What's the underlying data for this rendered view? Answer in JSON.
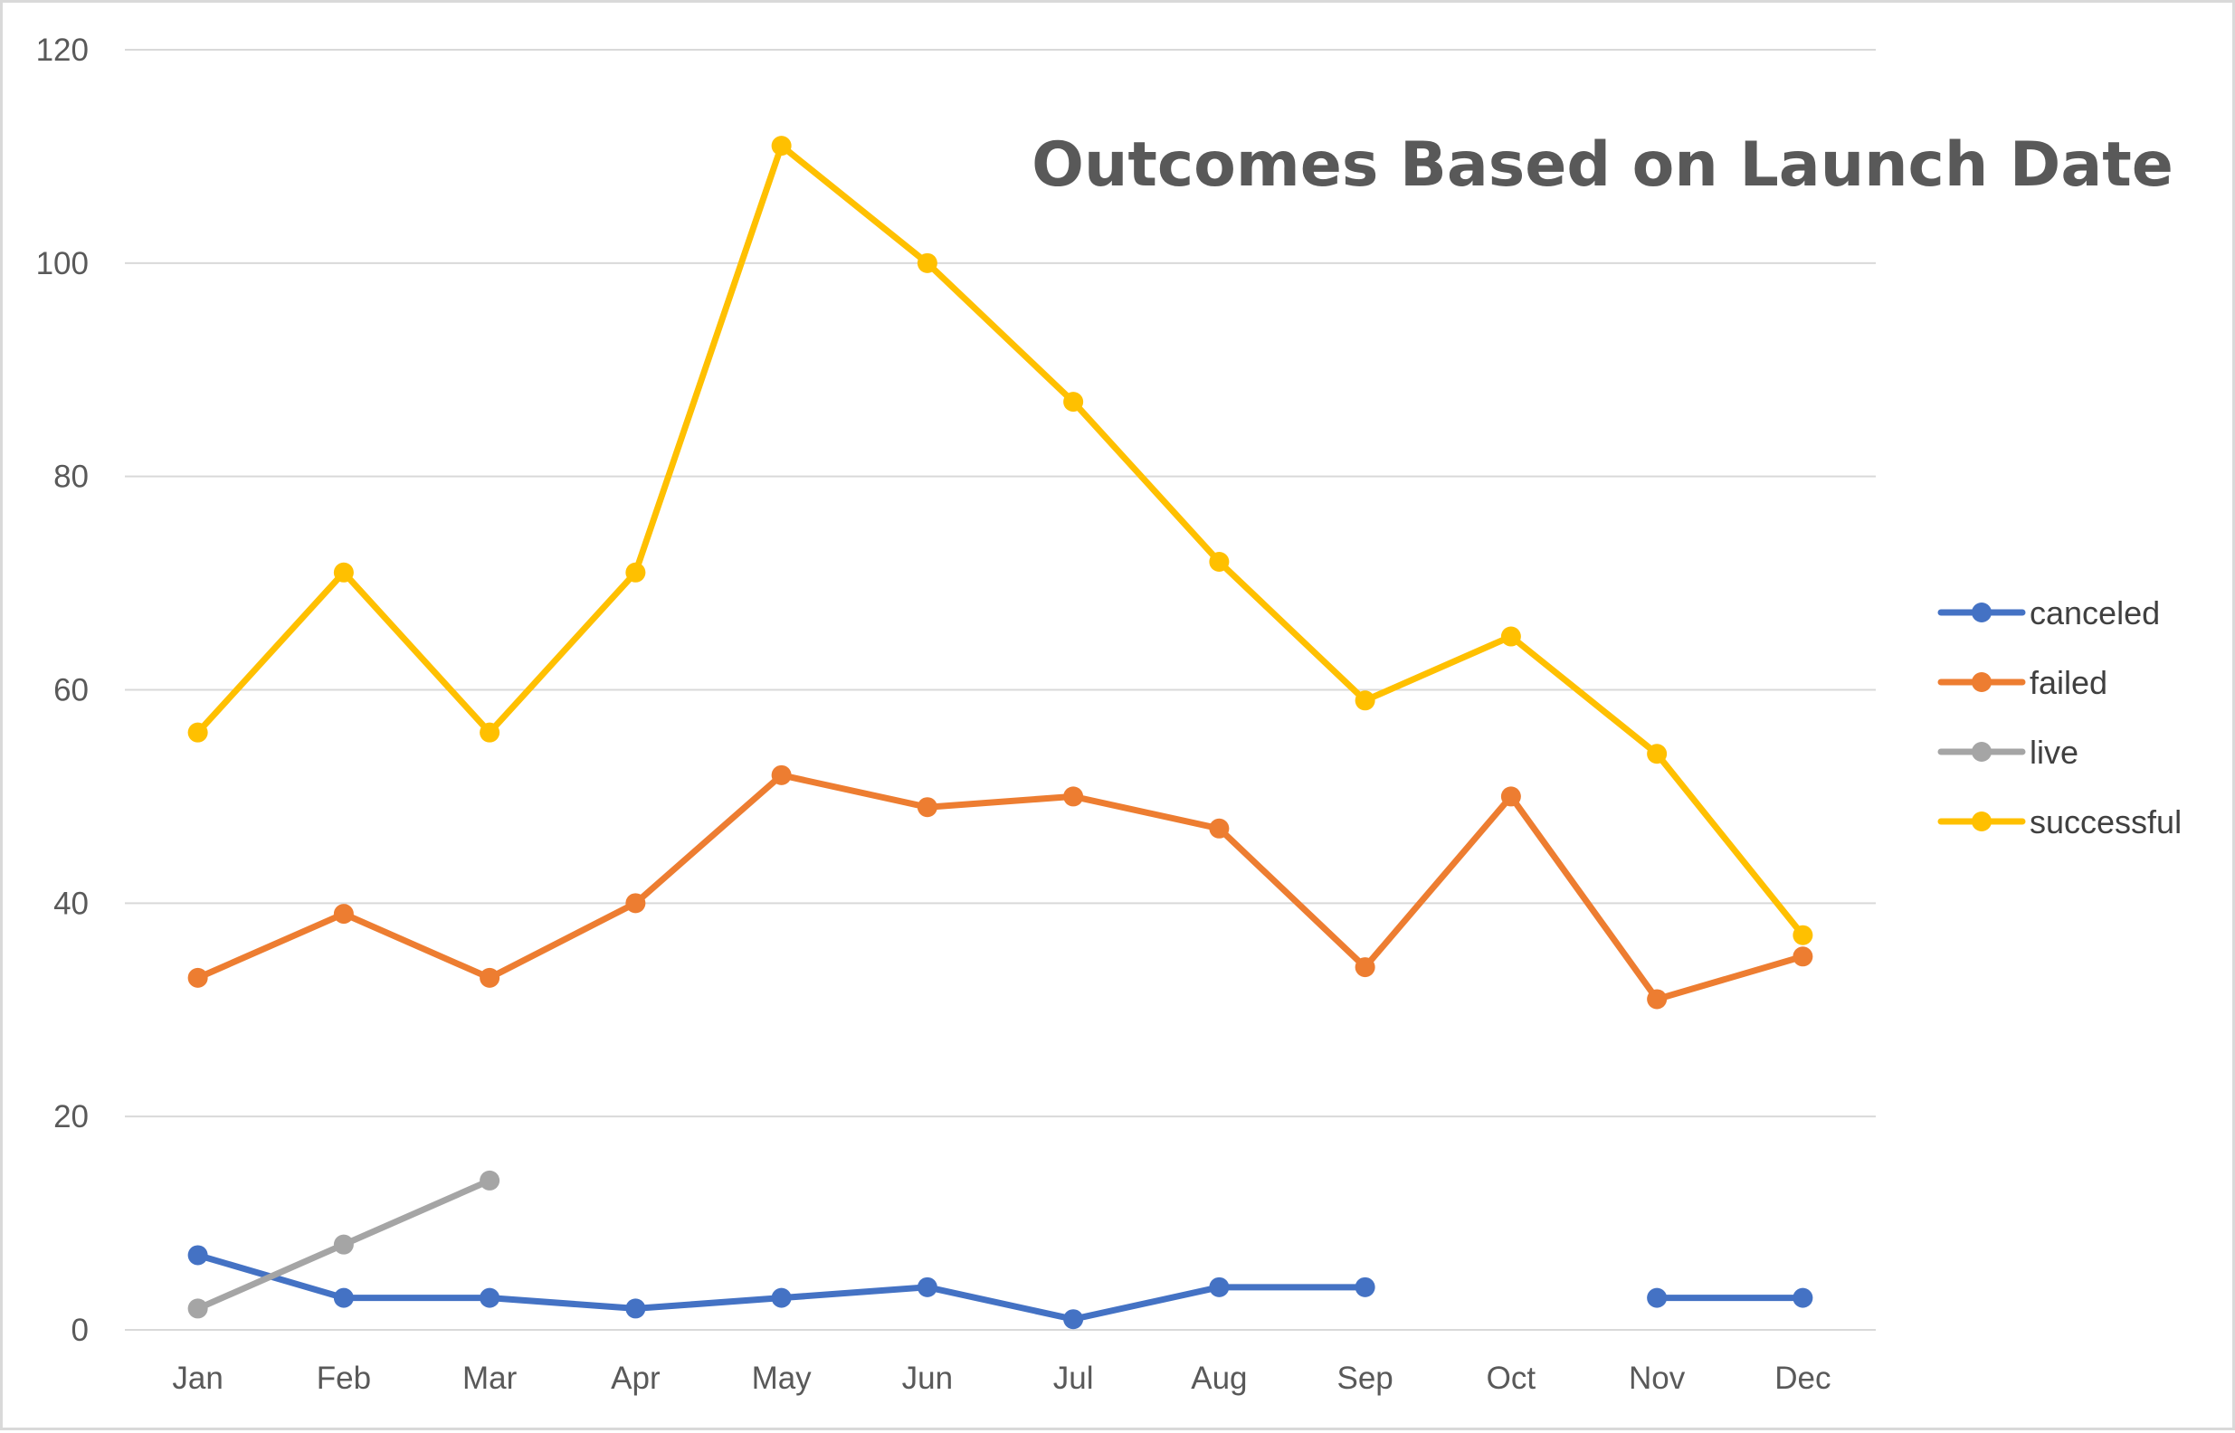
{
  "chart_data": {
    "type": "line",
    "title": "Outcomes Based on Launch Date",
    "xlabel": "",
    "ylabel": "",
    "categories": [
      "Jan",
      "Feb",
      "Mar",
      "Apr",
      "May",
      "Jun",
      "Jul",
      "Aug",
      "Sep",
      "Oct",
      "Nov",
      "Dec"
    ],
    "ylim": [
      0,
      120
    ],
    "yticks": [
      0,
      20,
      40,
      60,
      80,
      100,
      120
    ],
    "grid": true,
    "legend_position": "right",
    "series": [
      {
        "name": "canceled",
        "color": "#4472c4",
        "values": [
          7,
          3,
          3,
          2,
          3,
          4,
          1,
          4,
          4,
          null,
          3,
          3
        ]
      },
      {
        "name": "failed",
        "color": "#ed7d31",
        "values": [
          33,
          39,
          33,
          40,
          52,
          49,
          50,
          47,
          34,
          50,
          31,
          35
        ]
      },
      {
        "name": "live",
        "color": "#a5a5a5",
        "values": [
          2,
          8,
          14,
          null,
          null,
          null,
          null,
          null,
          null,
          null,
          null,
          null
        ]
      },
      {
        "name": "successful",
        "color": "#ffc000",
        "values": [
          56,
          71,
          56,
          71,
          111,
          100,
          87,
          72,
          59,
          65,
          54,
          37
        ]
      }
    ]
  }
}
